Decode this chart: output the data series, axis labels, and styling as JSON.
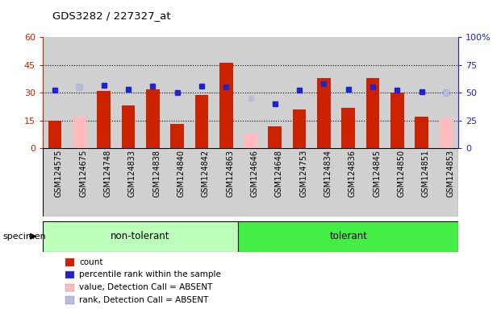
{
  "title": "GDS3282 / 227327_at",
  "samples": [
    "GSM124575",
    "GSM124675",
    "GSM124748",
    "GSM124833",
    "GSM124838",
    "GSM124840",
    "GSM124842",
    "GSM124863",
    "GSM124646",
    "GSM124648",
    "GSM124753",
    "GSM124834",
    "GSM124836",
    "GSM124845",
    "GSM124850",
    "GSM124851",
    "GSM124853"
  ],
  "group_labels": [
    "non-tolerant",
    "tolerant"
  ],
  "group_ranges": [
    [
      0,
      7
    ],
    [
      8,
      16
    ]
  ],
  "count_values": [
    15,
    null,
    31,
    23,
    32,
    13,
    29,
    46,
    null,
    12,
    21,
    38,
    22,
    38,
    30,
    17,
    null
  ],
  "absent_value_values": [
    null,
    17,
    null,
    null,
    null,
    null,
    null,
    null,
    8,
    null,
    null,
    null,
    null,
    null,
    null,
    null,
    16
  ],
  "rank_values": [
    52,
    55,
    57,
    53,
    56,
    50,
    56,
    55,
    null,
    40,
    52,
    58,
    53,
    55,
    52,
    51,
    50
  ],
  "absent_rank_values": [
    null,
    55,
    null,
    null,
    null,
    null,
    null,
    null,
    45,
    null,
    null,
    null,
    null,
    null,
    null,
    null,
    50
  ],
  "ylim_left": [
    0,
    60
  ],
  "ylim_right": [
    0,
    100
  ],
  "yticks_left": [
    0,
    15,
    30,
    45,
    60
  ],
  "yticks_right": [
    0,
    25,
    50,
    75,
    100
  ],
  "count_color": "#cc2200",
  "rank_color": "#2222cc",
  "absent_value_color": "#ffbbbb",
  "absent_rank_color": "#bbbbdd",
  "group_colors": [
    "#bbffbb",
    "#44ee44"
  ],
  "col_bg": "#d0d0d0",
  "plot_bg": "#ffffff",
  "legend_items": [
    {
      "label": "count",
      "color": "#cc2200"
    },
    {
      "label": "percentile rank within the sample",
      "color": "#2222cc"
    },
    {
      "label": "value, Detection Call = ABSENT",
      "color": "#ffbbbb"
    },
    {
      "label": "rank, Detection Call = ABSENT",
      "color": "#bbbbdd"
    }
  ]
}
